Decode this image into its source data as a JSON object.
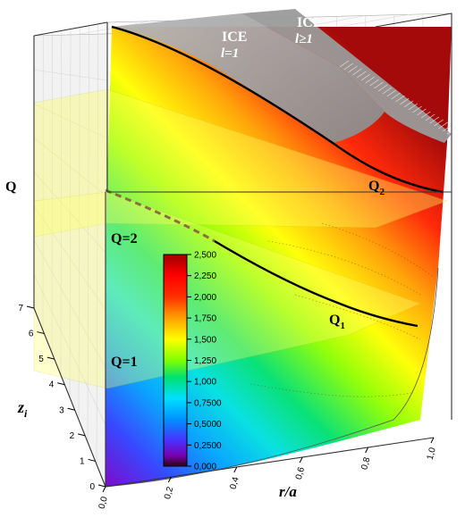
{
  "chart_data": {
    "type": "surface3d",
    "axes": {
      "x": {
        "label": "r/a",
        "range": [
          0.0,
          1.0
        ],
        "ticks": [
          "0,0",
          "0,2",
          "0,4",
          "0,6",
          "0,8",
          "1,0"
        ]
      },
      "y": {
        "label": "z",
        "label_sub": "i",
        "range": [
          0,
          7
        ],
        "ticks": [
          "0",
          "1",
          "2",
          "3",
          "4",
          "5",
          "6",
          "7"
        ]
      },
      "z": {
        "label": "Q"
      }
    },
    "colorbar": {
      "range": [
        0.0,
        2.5
      ],
      "ticks": [
        "0,000",
        "0,2500",
        "0,5000",
        "0,7500",
        "1,000",
        "1,250",
        "1,500",
        "1,750",
        "2,000",
        "2,250",
        "2,500"
      ],
      "colors": [
        "#2a0010",
        "#7a00b0",
        "#4a30ff",
        "#0090ff",
        "#00e0ff",
        "#00e070",
        "#80ff00",
        "#ffff00",
        "#ffa000",
        "#ff3000",
        "#ff0000",
        "#a00000"
      ]
    },
    "planes": [
      {
        "name": "Q=1",
        "q": 1
      },
      {
        "name": "Q=2",
        "q": 2
      }
    ],
    "curves": [
      {
        "name": "Q",
        "name_sub": "1",
        "plane": "Q=1"
      },
      {
        "name": "Q",
        "name_sub": "2",
        "plane": "Q=2"
      }
    ],
    "regions": [
      {
        "line1": "ICE",
        "line2": "l=1"
      },
      {
        "line1": "ICE",
        "line2": "l≥1"
      }
    ]
  }
}
